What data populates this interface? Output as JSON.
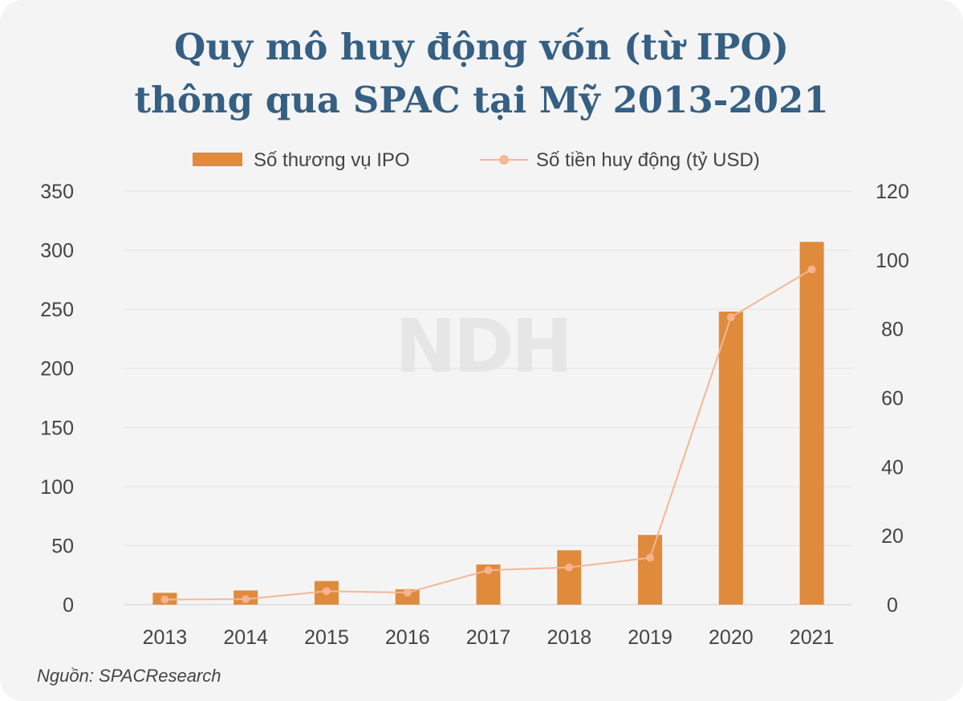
{
  "title_line1": "Quy mô huy động vốn (từ IPO)",
  "title_line2": "thông qua SPAC tại Mỹ 2013-2021",
  "watermark": "NDH",
  "source": "Nguồn: SPACResearch",
  "colors": {
    "bar": "#e08a3c",
    "line": "#f6b696",
    "title": "#355f83",
    "grid": "#e2e2e2",
    "axis_text": "#444444"
  },
  "chart_data": {
    "type": "bar+line",
    "title": "Quy mô huy động vốn (từ IPO) thông qua SPAC tại Mỹ 2013-2021",
    "categories": [
      "2013",
      "2014",
      "2015",
      "2016",
      "2017",
      "2018",
      "2019",
      "2020",
      "2021"
    ],
    "series": [
      {
        "name": "Số thương vụ IPO",
        "kind": "bar",
        "axis": "left",
        "values": [
          10,
          12,
          20,
          13,
          34,
          46,
          59,
          248,
          307
        ]
      },
      {
        "name": "Số tiền huy động (tỷ USD)",
        "kind": "line",
        "axis": "right",
        "values": [
          1.5,
          1.6,
          3.9,
          3.5,
          10.0,
          10.8,
          13.6,
          83.4,
          97.3
        ]
      }
    ],
    "y_left": {
      "min": 0,
      "max": 350,
      "ticks": [
        0,
        50,
        100,
        150,
        200,
        250,
        300,
        350
      ]
    },
    "y_right": {
      "min": 0,
      "max": 120,
      "ticks": [
        0,
        20,
        40,
        60,
        80,
        100,
        120
      ]
    },
    "legend_position": "top-center",
    "grid": true
  }
}
